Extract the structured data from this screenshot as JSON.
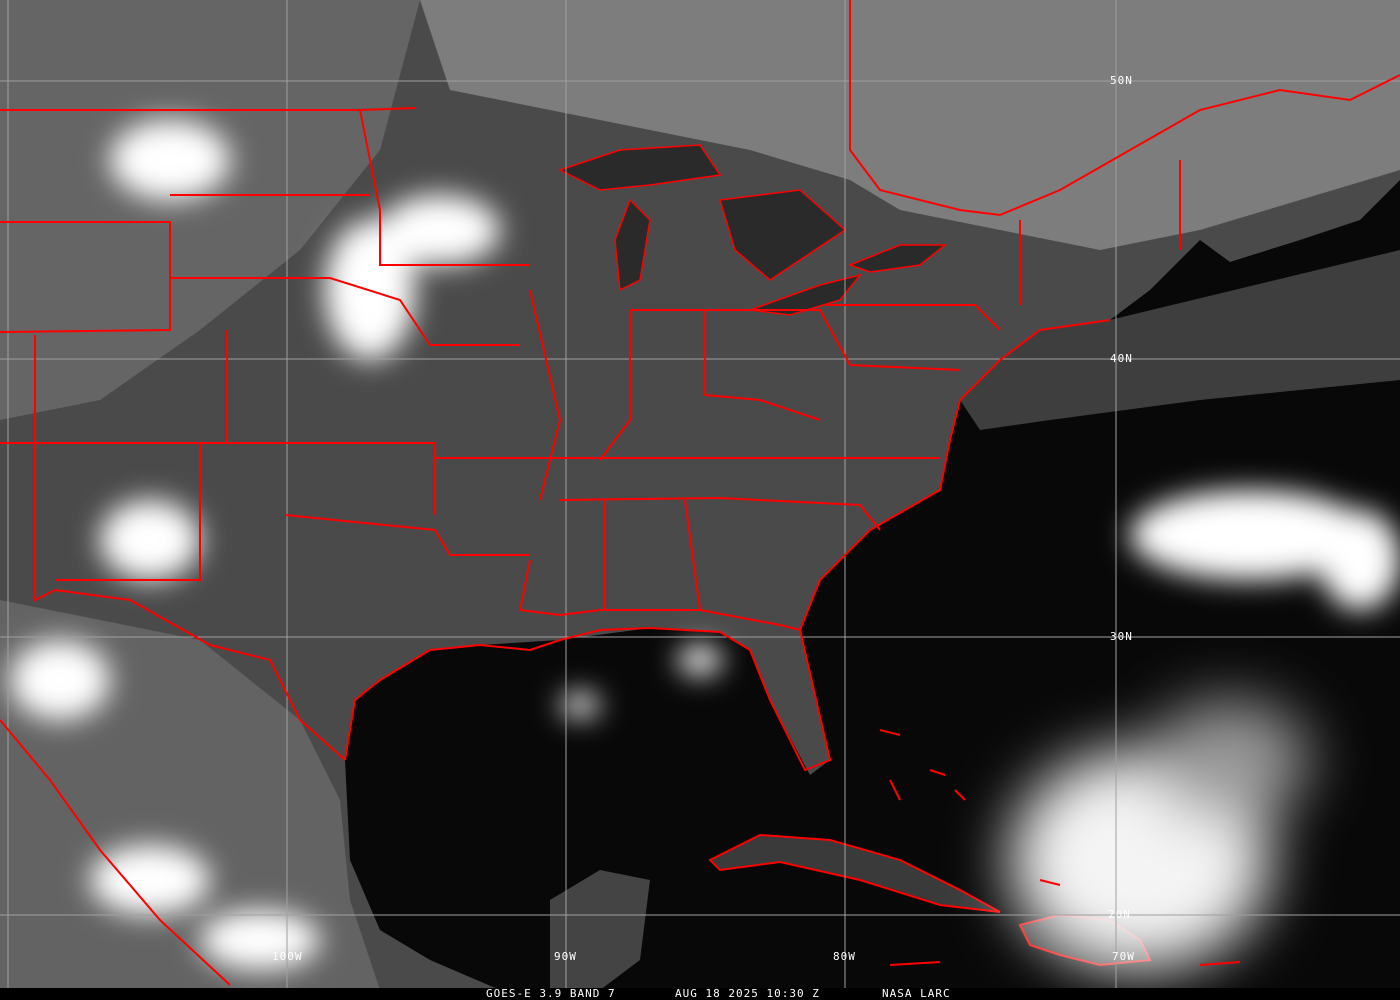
{
  "caption": {
    "satellite": "GOES-E 3.9 BAND 7",
    "datetime": "AUG 18 2025 10:30 Z",
    "credit": "NASA LARC"
  },
  "grid": {
    "latitudes": [
      "50N",
      "40N",
      "30N",
      "20N"
    ],
    "longitudes": [
      "100W",
      "90W",
      "80W",
      "70W"
    ]
  },
  "colors": {
    "boundaries": "#ff0000",
    "gridlines": "#a0a0a0",
    "labels": "#ffffff"
  }
}
